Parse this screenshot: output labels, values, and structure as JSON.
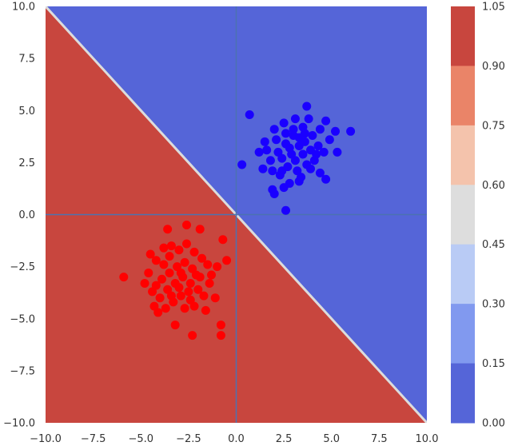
{
  "chart_data": {
    "type": "scatter",
    "title": "",
    "xlabel": "",
    "ylabel": "",
    "xlim": [
      -10,
      10
    ],
    "ylim": [
      -10,
      10
    ],
    "xticks": [
      "-10.0",
      "-7.5",
      "-5.0",
      "-2.5",
      "0.0",
      "2.5",
      "5.0",
      "7.5",
      "10.0"
    ],
    "yticks": [
      "10.0",
      "7.5",
      "5.0",
      "2.5",
      "0.0",
      "-2.5",
      "-5.0",
      "-7.5",
      "-10.0"
    ],
    "grid": false,
    "background": {
      "kind": "decision-region",
      "boundary": "y = -x",
      "upper_region_color": "#5565d8",
      "lower_region_color": "#c8463e"
    },
    "reference_lines": [
      {
        "orientation": "vertical",
        "value": 0,
        "color": "#4c72b0"
      },
      {
        "orientation": "horizontal",
        "value": 0,
        "color": "#4c72b0"
      }
    ],
    "colorbar": {
      "ticks": [
        "1.05",
        "0.90",
        "0.75",
        "0.60",
        "0.45",
        "0.30",
        "0.15",
        "0.00"
      ],
      "levels_top_to_bottom": [
        "#c8463e",
        "#ea8468",
        "#f4c3ac",
        "#dddddd",
        "#b9cbf5",
        "#8199ef",
        "#5565d8"
      ]
    },
    "series": [
      {
        "color": "#1a00ff",
        "points": [
          [
            0.7,
            4.8
          ],
          [
            3.7,
            5.2
          ],
          [
            4.7,
            4.5
          ],
          [
            5.2,
            4.0
          ],
          [
            6.0,
            4.0
          ],
          [
            4.9,
            3.6
          ],
          [
            5.3,
            3.0
          ],
          [
            4.4,
            2.0
          ],
          [
            4.7,
            1.7
          ],
          [
            3.9,
            2.2
          ],
          [
            3.3,
            1.6
          ],
          [
            2.8,
            1.5
          ],
          [
            2.5,
            1.3
          ],
          [
            2.0,
            1.0
          ],
          [
            1.9,
            1.2
          ],
          [
            2.6,
            0.2
          ],
          [
            0.3,
            2.4
          ],
          [
            1.2,
            3.0
          ],
          [
            1.5,
            3.5
          ],
          [
            2.0,
            4.1
          ],
          [
            2.5,
            4.4
          ],
          [
            3.1,
            4.6
          ],
          [
            3.5,
            4.2
          ],
          [
            3.0,
            3.8
          ],
          [
            2.6,
            3.4
          ],
          [
            2.2,
            3.0
          ],
          [
            1.8,
            2.6
          ],
          [
            1.6,
            3.1
          ],
          [
            2.4,
            2.7
          ],
          [
            2.9,
            2.9
          ],
          [
            3.3,
            3.3
          ],
          [
            3.6,
            3.5
          ],
          [
            4.0,
            3.8
          ],
          [
            4.3,
            3.3
          ],
          [
            4.1,
            2.6
          ],
          [
            3.7,
            2.4
          ],
          [
            3.2,
            2.1
          ],
          [
            2.7,
            2.3
          ],
          [
            2.3,
            1.9
          ],
          [
            1.9,
            2.1
          ],
          [
            3.1,
            2.6
          ],
          [
            3.5,
            2.9
          ],
          [
            3.9,
            3.1
          ],
          [
            2.6,
            3.9
          ],
          [
            2.1,
            3.6
          ],
          [
            1.4,
            2.2
          ],
          [
            3.4,
            1.8
          ],
          [
            4.6,
            3.0
          ],
          [
            3.8,
            4.6
          ],
          [
            4.4,
            4.1
          ],
          [
            2.8,
            3.2
          ],
          [
            3.0,
            4.1
          ],
          [
            3.6,
            3.9
          ],
          [
            4.2,
            2.9
          ],
          [
            2.4,
            2.1
          ],
          [
            3.3,
            3.7
          ]
        ]
      },
      {
        "color": "#ff0000",
        "points": [
          [
            -5.9,
            -3.0
          ],
          [
            -3.6,
            -0.7
          ],
          [
            -2.6,
            -0.5
          ],
          [
            -1.9,
            -0.7
          ],
          [
            -0.7,
            -1.2
          ],
          [
            -0.5,
            -2.2
          ],
          [
            -1.0,
            -2.5
          ],
          [
            -1.4,
            -3.3
          ],
          [
            -1.6,
            -4.6
          ],
          [
            -2.4,
            -4.1
          ],
          [
            -2.7,
            -4.5
          ],
          [
            -3.2,
            -5.3
          ],
          [
            -2.3,
            -5.8
          ],
          [
            -0.8,
            -5.8
          ],
          [
            -0.8,
            -5.3
          ],
          [
            -4.3,
            -4.4
          ],
          [
            -4.5,
            -1.9
          ],
          [
            -4.6,
            -2.8
          ],
          [
            -4.2,
            -2.2
          ],
          [
            -3.8,
            -1.6
          ],
          [
            -3.4,
            -1.5
          ],
          [
            -3.0,
            -1.7
          ],
          [
            -2.6,
            -1.4
          ],
          [
            -2.2,
            -1.8
          ],
          [
            -1.8,
            -2.1
          ],
          [
            -1.5,
            -2.4
          ],
          [
            -1.3,
            -2.9
          ],
          [
            -1.9,
            -3.0
          ],
          [
            -2.3,
            -2.6
          ],
          [
            -2.7,
            -2.3
          ],
          [
            -3.1,
            -2.5
          ],
          [
            -3.5,
            -2.8
          ],
          [
            -3.9,
            -3.1
          ],
          [
            -4.2,
            -3.4
          ],
          [
            -4.4,
            -3.7
          ],
          [
            -4.0,
            -4.0
          ],
          [
            -3.6,
            -3.6
          ],
          [
            -3.2,
            -3.3
          ],
          [
            -2.8,
            -3.0
          ],
          [
            -2.4,
            -3.3
          ],
          [
            -2.0,
            -3.6
          ],
          [
            -1.7,
            -3.9
          ],
          [
            -2.2,
            -4.4
          ],
          [
            -2.9,
            -3.9
          ],
          [
            -3.3,
            -4.2
          ],
          [
            -3.7,
            -4.5
          ],
          [
            -4.1,
            -4.7
          ],
          [
            -3.5,
            -2.0
          ],
          [
            -2.9,
            -2.8
          ],
          [
            -2.5,
            -3.7
          ],
          [
            -3.0,
            -3.5
          ],
          [
            -3.4,
            -3.9
          ],
          [
            -1.1,
            -4.0
          ],
          [
            -4.8,
            -3.3
          ],
          [
            -2.1,
            -2.9
          ],
          [
            -3.8,
            -2.4
          ]
        ]
      }
    ]
  }
}
